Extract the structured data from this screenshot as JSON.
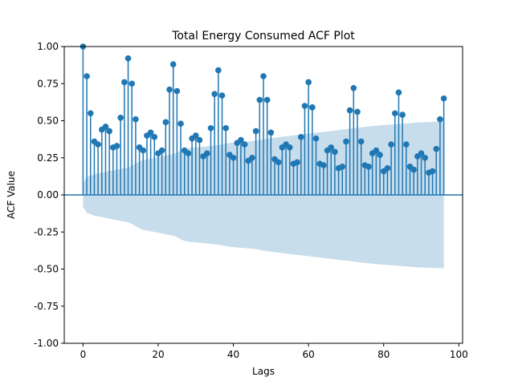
{
  "chart_data": {
    "type": "stem",
    "title": "Total Energy Consumed ACF Plot",
    "xlabel": "Lags",
    "ylabel": "ACF Value",
    "xlim": [
      -5,
      101
    ],
    "ylim": [
      -1.0,
      1.0
    ],
    "x_ticks": [
      "0",
      "20",
      "40",
      "60",
      "80",
      "100"
    ],
    "y_ticks": [
      "-1.00",
      "-0.75",
      "-0.50",
      "-0.25",
      "0.00",
      "0.25",
      "0.50",
      "0.75",
      "1.00"
    ],
    "grid": false,
    "series_color": "#1f77b4",
    "band_color": "#1f77b4",
    "lags": [
      0,
      1,
      2,
      3,
      4,
      5,
      6,
      7,
      8,
      9,
      10,
      11,
      12,
      13,
      14,
      15,
      16,
      17,
      18,
      19,
      20,
      21,
      22,
      23,
      24,
      25,
      26,
      27,
      28,
      29,
      30,
      31,
      32,
      33,
      34,
      35,
      36,
      37,
      38,
      39,
      40,
      41,
      42,
      43,
      44,
      45,
      46,
      47,
      48,
      49,
      50,
      51,
      52,
      53,
      54,
      55,
      56,
      57,
      58,
      59,
      60,
      61,
      62,
      63,
      64,
      65,
      66,
      67,
      68,
      69,
      70,
      71,
      72,
      73,
      74,
      75,
      76,
      77,
      78,
      79,
      80,
      81,
      82,
      83,
      84,
      85,
      86,
      87,
      88,
      89,
      90,
      91,
      92,
      93,
      94,
      95,
      96
    ],
    "acf": [
      1.0,
      0.8,
      0.55,
      0.36,
      0.34,
      0.44,
      0.46,
      0.43,
      0.32,
      0.33,
      0.52,
      0.76,
      0.92,
      0.75,
      0.51,
      0.32,
      0.3,
      0.4,
      0.42,
      0.39,
      0.28,
      0.3,
      0.49,
      0.71,
      0.88,
      0.7,
      0.48,
      0.3,
      0.28,
      0.38,
      0.4,
      0.37,
      0.26,
      0.28,
      0.45,
      0.68,
      0.84,
      0.67,
      0.45,
      0.27,
      0.25,
      0.35,
      0.37,
      0.34,
      0.23,
      0.25,
      0.43,
      0.64,
      0.8,
      0.64,
      0.42,
      0.24,
      0.22,
      0.32,
      0.34,
      0.32,
      0.21,
      0.22,
      0.39,
      0.6,
      0.76,
      0.59,
      0.38,
      0.21,
      0.2,
      0.3,
      0.32,
      0.29,
      0.18,
      0.19,
      0.36,
      0.57,
      0.72,
      0.56,
      0.36,
      0.2,
      0.19,
      0.28,
      0.3,
      0.27,
      0.16,
      0.18,
      0.34,
      0.55,
      0.69,
      0.54,
      0.34,
      0.19,
      0.17,
      0.26,
      0.28,
      0.25,
      0.15,
      0.16,
      0.31,
      0.51,
      0.65
    ],
    "confidence_upper": [
      0.08,
      0.12,
      0.13,
      0.14,
      0.145,
      0.15,
      0.155,
      0.16,
      0.165,
      0.17,
      0.175,
      0.18,
      0.185,
      0.195,
      0.21,
      0.225,
      0.235,
      0.24,
      0.245,
      0.25,
      0.255,
      0.26,
      0.265,
      0.27,
      0.275,
      0.285,
      0.3,
      0.31,
      0.315,
      0.318,
      0.32,
      0.322,
      0.325,
      0.328,
      0.33,
      0.333,
      0.336,
      0.34,
      0.345,
      0.35,
      0.352,
      0.354,
      0.356,
      0.358,
      0.36,
      0.363,
      0.366,
      0.37,
      0.375,
      0.38,
      0.383,
      0.386,
      0.389,
      0.392,
      0.395,
      0.398,
      0.401,
      0.404,
      0.407,
      0.41,
      0.413,
      0.416,
      0.419,
      0.422,
      0.425,
      0.428,
      0.431,
      0.434,
      0.437,
      0.44,
      0.443,
      0.446,
      0.449,
      0.452,
      0.455,
      0.458,
      0.461,
      0.464,
      0.466,
      0.468,
      0.47,
      0.472,
      0.474,
      0.476,
      0.478,
      0.48,
      0.482,
      0.484,
      0.486,
      0.488,
      0.489,
      0.49,
      0.491,
      0.492,
      0.493,
      0.494,
      0.495
    ]
  }
}
